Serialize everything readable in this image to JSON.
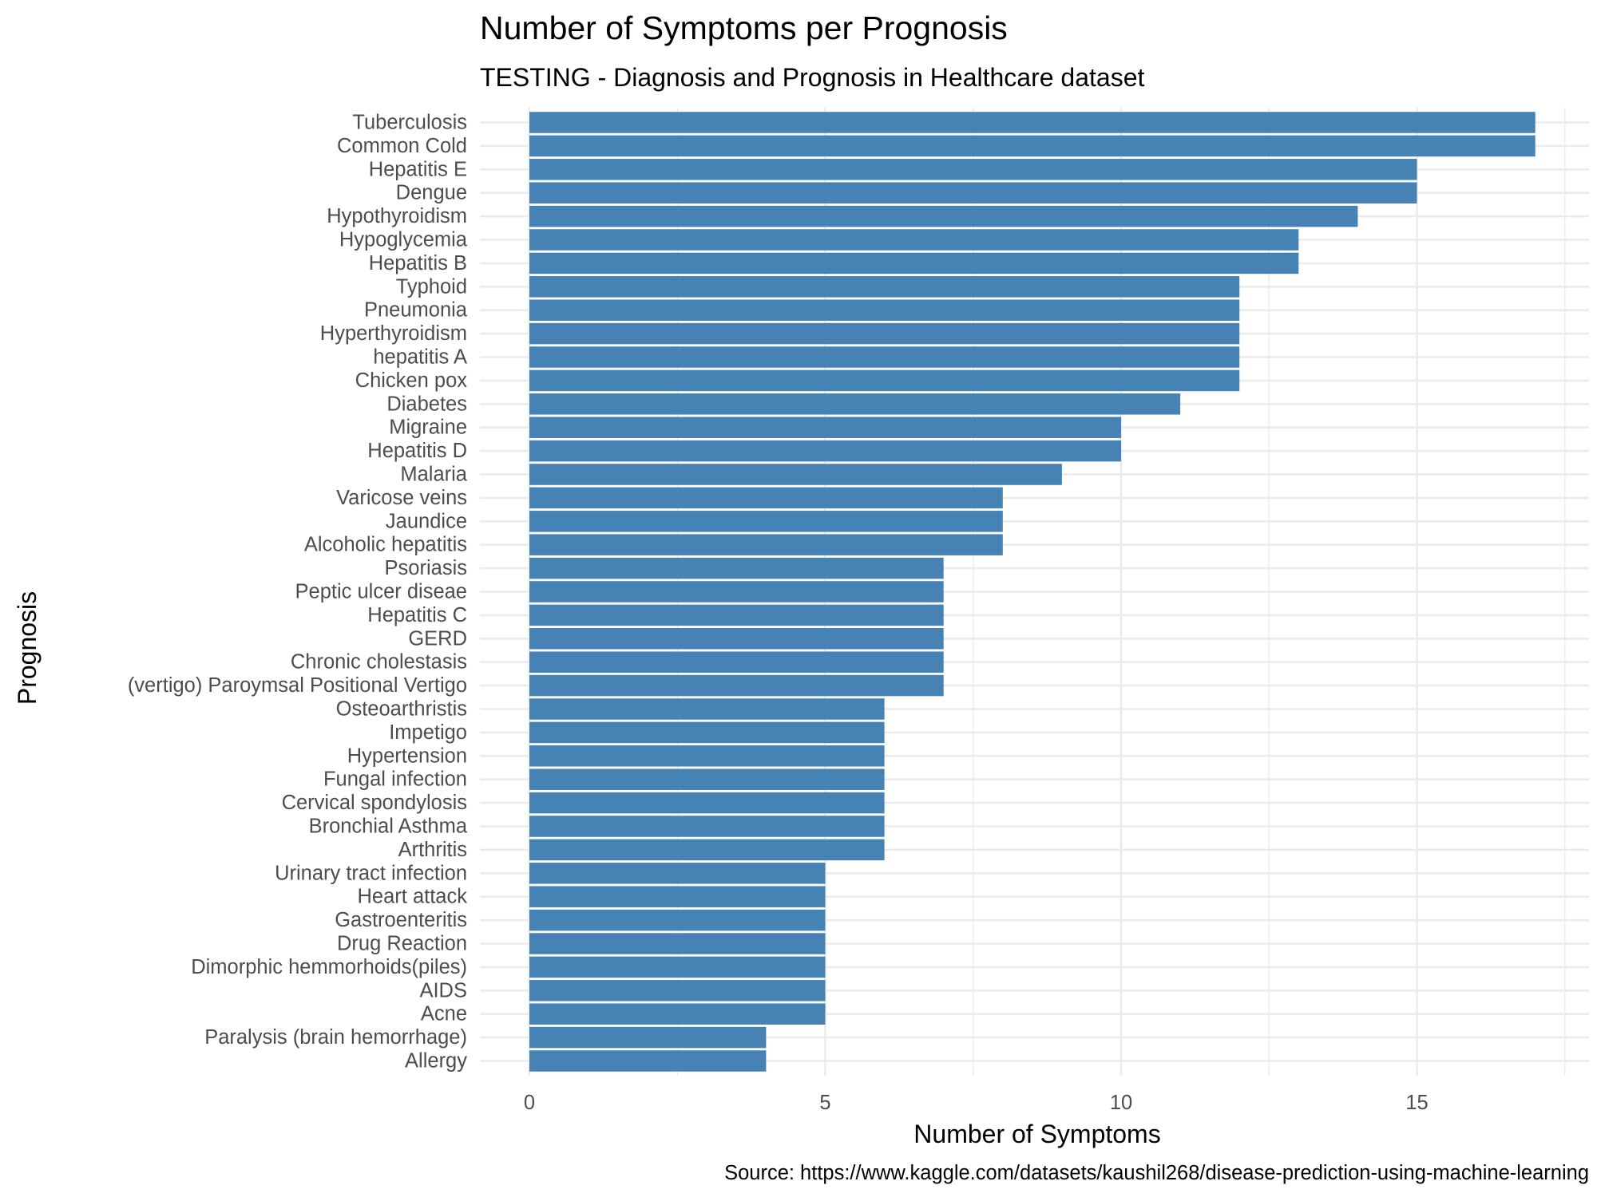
{
  "chart_data": {
    "type": "bar",
    "orientation": "horizontal",
    "title": "Number of Symptoms per Prognosis",
    "subtitle": "TESTING - Diagnosis and Prognosis in Healthcare dataset",
    "xlabel": "Number of Symptoms",
    "ylabel": "Prognosis",
    "caption": "Source: https://www.kaggle.com/datasets/kaushil268/disease-prediction-using-machine-learning",
    "xlim": [
      0,
      17.85
    ],
    "xticks": [
      0,
      5,
      10,
      15
    ],
    "grid": true,
    "bar_color": "#4682b4",
    "categories": [
      "Tuberculosis",
      "Common Cold",
      "Hepatitis E",
      "Dengue",
      "Hypothyroidism",
      "Hypoglycemia",
      "Hepatitis B",
      "Typhoid",
      "Pneumonia",
      "Hyperthyroidism",
      "hepatitis A",
      "Chicken pox",
      "Diabetes ",
      "Migraine",
      "Hepatitis D",
      "Malaria",
      "Varicose veins",
      "Jaundice",
      "Alcoholic hepatitis",
      "Psoriasis",
      "Peptic ulcer diseae",
      "Hepatitis C",
      "GERD",
      "Chronic cholestasis",
      "(vertigo) Paroymsal  Positional Vertigo",
      "Osteoarthristis",
      "Impetigo",
      "Hypertension ",
      "Fungal infection",
      "Cervical spondylosis",
      "Bronchial Asthma",
      "Arthritis",
      "Urinary tract infection",
      "Heart attack",
      "Gastroenteritis",
      "Drug Reaction",
      "Dimorphic hemmorhoids(piles)",
      "AIDS",
      "Acne",
      "Paralysis (brain hemorrhage)",
      "Allergy"
    ],
    "values": [
      17,
      17,
      15,
      15,
      14,
      13,
      13,
      12,
      12,
      12,
      12,
      12,
      11,
      10,
      10,
      9,
      8,
      8,
      8,
      7,
      7,
      7,
      7,
      7,
      7,
      6,
      6,
      6,
      6,
      6,
      6,
      6,
      5,
      5,
      5,
      5,
      5,
      5,
      5,
      4,
      4
    ]
  }
}
